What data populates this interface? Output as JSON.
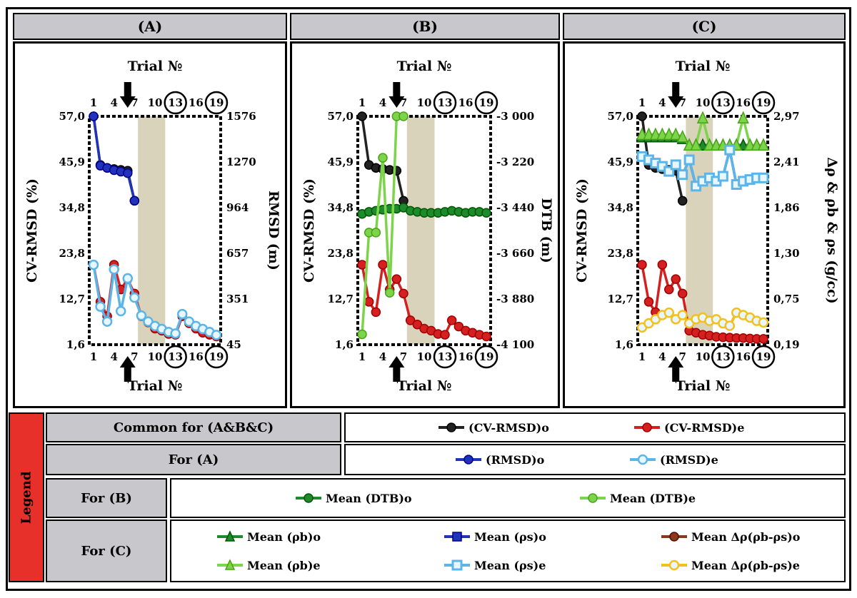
{
  "panels": [
    {
      "id": "A",
      "header": "(A)",
      "top_axis_title": "Trial №",
      "bottom_axis_title": "Trial №",
      "left_title": "CV-RMSD (%)",
      "right_title": "RMSD (m)",
      "right_ticks": [
        "1576",
        "1270",
        "964",
        "657",
        "351",
        "45"
      ]
    },
    {
      "id": "B",
      "header": "(B)",
      "top_axis_title": "Trial №",
      "bottom_axis_title": "Trial №",
      "left_title": "CV-RMSD (%)",
      "right_title": "DTB (m)",
      "right_ticks": [
        "-3 000",
        "-3 220",
        "-3 440",
        "-3 660",
        "-3 880",
        "-4 100"
      ]
    },
    {
      "id": "C",
      "header": "(C)",
      "top_axis_title": "Trial №",
      "bottom_axis_title": "Trial №",
      "left_title": "CV-RMSD (%)",
      "right_title": "Δρ & ρb & ρs  (g/cc)",
      "right_ticks": [
        "2,97",
        "2,41",
        "1,86",
        "1,30",
        "0,75",
        "0,19"
      ]
    }
  ],
  "left_ticks": [
    "57,0",
    "45,9",
    "34,8",
    "23,8",
    "12,7",
    "1,6"
  ],
  "x_ticks": [
    "1",
    "4",
    "7",
    "10",
    "13",
    "16",
    "19"
  ],
  "chart_data": [
    {
      "type": "line",
      "title": "(A)",
      "x": [
        1,
        2,
        3,
        4,
        5,
        6,
        7,
        8,
        9,
        10,
        11,
        12,
        13,
        14,
        15,
        16,
        17,
        18,
        19
      ],
      "ylabel": "CV-RMSD (%)",
      "y2label": "RMSD (m)",
      "ylim": [
        1.6,
        57.0
      ],
      "y2lim": [
        45,
        1576
      ],
      "series": [
        {
          "name": "(CV-RMSD)o",
          "axis": "left",
          "color": "#222222",
          "values": [
            57.0,
            45.2,
            44.5,
            44.2,
            44.0,
            43.8,
            36.5,
            null,
            null,
            null,
            null,
            null,
            null,
            null,
            null,
            null,
            null,
            null,
            null
          ]
        },
        {
          "name": "(CV-RMSD)e",
          "axis": "left",
          "color": "#d42020",
          "values": [
            21.0,
            12.0,
            8.5,
            21.0,
            15.0,
            17.5,
            14.0,
            8.5,
            7.0,
            5.5,
            5.0,
            4.2,
            4.0,
            8.5,
            6.8,
            5.5,
            4.5,
            4.0,
            3.6
          ]
        },
        {
          "name": "(RMSD)o",
          "axis": "right",
          "color": "#2233bb",
          "values": [
            1576,
            1245,
            1230,
            1215,
            1205,
            1195,
            1010,
            null,
            null,
            null,
            null,
            null,
            null,
            null,
            null,
            null,
            null,
            null,
            null
          ]
        },
        {
          "name": "(RMSD)e",
          "axis": "right",
          "color": "#5bb5e8",
          "values": [
            580,
            300,
            200,
            550,
            270,
            490,
            360,
            240,
            200,
            170,
            150,
            130,
            120,
            250,
            200,
            170,
            150,
            130,
            110
          ]
        }
      ],
      "shaded_x": [
        7.5,
        11.5
      ]
    },
    {
      "type": "line",
      "title": "(B)",
      "x": [
        1,
        2,
        3,
        4,
        5,
        6,
        7,
        8,
        9,
        10,
        11,
        12,
        13,
        14,
        15,
        16,
        17,
        18,
        19
      ],
      "ylabel": "CV-RMSD (%)",
      "y2label": "DTB (m)",
      "ylim": [
        1.6,
        57.0
      ],
      "y2lim": [
        -4100,
        -3000
      ],
      "series": [
        {
          "name": "(CV-RMSD)o",
          "axis": "left",
          "color": "#222222",
          "values": [
            57.0,
            45.2,
            44.5,
            44.2,
            44.0,
            43.8,
            36.5,
            null,
            null,
            null,
            null,
            null,
            null,
            null,
            null,
            null,
            null,
            null,
            null
          ]
        },
        {
          "name": "(CV-RMSD)e",
          "axis": "left",
          "color": "#d42020",
          "values": [
            21.0,
            12.0,
            9.5,
            21.0,
            15.0,
            17.5,
            14.0,
            7.5,
            6.5,
            5.5,
            5.0,
            4.2,
            4.0,
            7.5,
            6.0,
            5.0,
            4.5,
            4.0,
            3.6
          ]
        },
        {
          "name": "Mean (DTB)o",
          "axis": "right",
          "color": "#1e8a2e",
          "values": [
            -3470,
            -3460,
            -3455,
            -3450,
            -3445,
            -3445,
            -3440,
            -3455,
            -3460,
            -3465,
            -3465,
            -3465,
            -3460,
            -3455,
            -3460,
            -3465,
            -3460,
            -3460,
            -3465
          ]
        },
        {
          "name": "Mean (DTB)e",
          "axis": "right",
          "color": "#7cd44a",
          "values": [
            -4050,
            -3560,
            -3560,
            -3200,
            -3850,
            -3000,
            -3000,
            null,
            null,
            null,
            null,
            null,
            null,
            null,
            null,
            null,
            null,
            null,
            null
          ]
        }
      ],
      "shaded_x": [
        7.5,
        11.5
      ]
    },
    {
      "type": "line",
      "title": "(C)",
      "x": [
        1,
        2,
        3,
        4,
        5,
        6,
        7,
        8,
        9,
        10,
        11,
        12,
        13,
        14,
        15,
        16,
        17,
        18,
        19
      ],
      "ylabel": "CV-RMSD (%)",
      "y2label": "Δρ & ρb & ρs  (g/cc)",
      "ylim": [
        1.6,
        57.0
      ],
      "y2lim": [
        0.19,
        2.97
      ],
      "series": [
        {
          "name": "(CV-RMSD)o",
          "axis": "left",
          "color": "#222222",
          "values": [
            57.0,
            45.2,
            44.5,
            44.2,
            44.0,
            43.8,
            36.5,
            null,
            null,
            null,
            null,
            null,
            null,
            null,
            null,
            null,
            null,
            null,
            null
          ]
        },
        {
          "name": "(CV-RMSD)e",
          "axis": "left",
          "color": "#d42020",
          "values": [
            21.0,
            12.0,
            9.5,
            21.0,
            15.0,
            17.5,
            14.0,
            5.0,
            4.5,
            4.0,
            3.8,
            3.5,
            3.4,
            3.3,
            3.2,
            3.2,
            3.1,
            3.0,
            3.0
          ]
        },
        {
          "name": "Mean (ρb)o",
          "axis": "right",
          "color": "#1e8a2e",
          "values": [
            2.72,
            2.72,
            2.72,
            2.72,
            2.72,
            2.72,
            2.7,
            2.62,
            2.62,
            2.62,
            2.62,
            2.62,
            2.62,
            2.62,
            2.62,
            2.62,
            2.62,
            2.62,
            2.62
          ]
        },
        {
          "name": "Mean (ρb)e",
          "axis": "right",
          "color": "#7cd44a",
          "values": [
            2.75,
            2.75,
            2.75,
            2.75,
            2.75,
            2.75,
            2.72,
            2.62,
            2.62,
            2.95,
            2.62,
            2.62,
            2.62,
            2.62,
            2.62,
            2.95,
            2.62,
            2.62,
            2.62
          ]
        },
        {
          "name": "Mean (ρs)o",
          "axis": "right",
          "color": "#2233bb",
          "values": [
            2.48,
            2.44,
            2.4,
            2.36,
            2.3,
            2.38,
            2.26,
            2.44,
            2.12,
            2.18,
            2.22,
            2.18,
            2.24,
            2.56,
            2.14,
            2.18,
            2.2,
            2.22,
            2.22
          ]
        },
        {
          "name": "Mean (ρs)e",
          "axis": "right",
          "color": "#5bb5e8",
          "values": [
            2.48,
            2.44,
            2.4,
            2.36,
            2.3,
            2.38,
            2.26,
            2.44,
            2.12,
            2.18,
            2.22,
            2.18,
            2.24,
            2.56,
            2.14,
            2.18,
            2.2,
            2.22,
            2.22
          ]
        },
        {
          "name": "Mean Δρ(ρb-ρs)o",
          "axis": "right",
          "color": "#8a3a1a",
          "values": [
            0.4,
            0.45,
            0.5,
            0.55,
            0.58,
            0.5,
            0.55,
            0.45,
            0.5,
            0.52,
            0.48,
            0.5,
            0.45,
            0.42,
            0.58,
            0.55,
            0.52,
            0.48,
            0.46
          ]
        },
        {
          "name": "Mean Δρ(ρb-ρs)e",
          "axis": "right",
          "color": "#f4c020",
          "values": [
            0.4,
            0.45,
            0.5,
            0.55,
            0.58,
            0.5,
            0.55,
            0.45,
            0.5,
            0.52,
            0.48,
            0.5,
            0.45,
            0.42,
            0.58,
            0.55,
            0.52,
            0.48,
            0.46
          ]
        }
      ],
      "shaded_x": [
        7.5,
        11.5
      ]
    }
  ],
  "legend": {
    "title": "Legend",
    "rows": [
      {
        "label": "Common for (A&B&C)",
        "items": [
          {
            "text": "(CV-RMSD)o",
            "color": "#222222",
            "marker": "circle",
            "hollow": false
          },
          {
            "text": "(CV-RMSD)e",
            "color": "#d42020",
            "marker": "circle",
            "hollow": false
          }
        ]
      },
      {
        "label": "For (A)",
        "items": [
          {
            "text": "(RMSD)o",
            "color": "#2233bb",
            "marker": "circle",
            "hollow": false
          },
          {
            "text": "(RMSD)e",
            "color": "#5bb5e8",
            "marker": "circle",
            "hollow": true
          }
        ]
      },
      {
        "label": "For (B)",
        "items": [
          {
            "text": "Mean (DTB)o",
            "color": "#1e8a2e",
            "marker": "circle",
            "hollow": false
          },
          {
            "text": "Mean (DTB)e",
            "color": "#7cd44a",
            "marker": "circle",
            "hollow": false
          }
        ]
      },
      {
        "label": "For (C)",
        "items": [
          {
            "text": "Mean (ρb)o",
            "color": "#1e8a2e",
            "marker": "triangle",
            "hollow": false
          },
          {
            "text": "Mean (ρs)o",
            "color": "#2233bb",
            "marker": "square",
            "hollow": false
          },
          {
            "text": "Mean Δρ(ρb-ρs)o",
            "color": "#8a3a1a",
            "marker": "circle",
            "hollow": false
          },
          {
            "text": "Mean (ρb)e",
            "color": "#7cd44a",
            "marker": "triangle",
            "hollow": false
          },
          {
            "text": "Mean (ρs)e",
            "color": "#5bb5e8",
            "marker": "square",
            "hollow": true
          },
          {
            "text": "Mean Δρ(ρb-ρs)e",
            "color": "#f4c020",
            "marker": "circle",
            "hollow": true
          }
        ]
      }
    ]
  }
}
